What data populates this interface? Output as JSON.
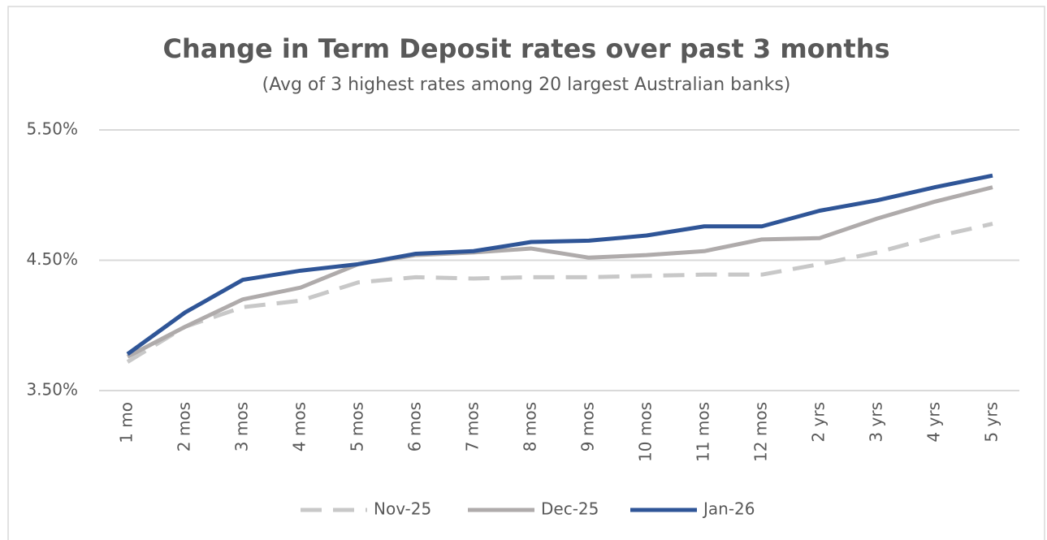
{
  "chart_data": {
    "type": "line",
    "title": "Change in Term Deposit rates over past 3 months",
    "subtitle": "(Avg of 3 highest rates among 20 largest Australian banks)",
    "categories": [
      "1 mo",
      "2 mos",
      "3 mos",
      "4 mos",
      "5 mos",
      "6 mos",
      "7 mos",
      "8 mos",
      "9 mos",
      "10 mos",
      "11 mos",
      "12 mos",
      "2 yrs",
      "3 yrs",
      "4 yrs",
      "5 yrs"
    ],
    "series": [
      {
        "name": "Nov-25",
        "color": "#c8c8c8",
        "style": "dashed",
        "values": [
          3.72,
          3.99,
          4.14,
          4.19,
          4.33,
          4.37,
          4.36,
          4.37,
          4.37,
          4.38,
          4.39,
          4.39,
          4.47,
          4.56,
          4.68,
          4.78
        ]
      },
      {
        "name": "Dec-25",
        "color": "#afabab",
        "style": "solid",
        "values": [
          3.76,
          3.99,
          4.2,
          4.29,
          4.47,
          4.54,
          4.56,
          4.59,
          4.52,
          4.54,
          4.57,
          4.66,
          4.67,
          4.82,
          4.95,
          5.06
        ]
      },
      {
        "name": "Jan-26",
        "color": "#2f5597",
        "style": "solid",
        "values": [
          3.78,
          4.1,
          4.35,
          4.42,
          4.47,
          4.55,
          4.57,
          4.64,
          4.65,
          4.69,
          4.76,
          4.76,
          4.88,
          4.96,
          5.06,
          5.15
        ]
      }
    ],
    "ylim": [
      3.5,
      5.5
    ],
    "yticks": [
      {
        "value": 3.5,
        "label": "3.50%"
      },
      {
        "value": 4.5,
        "label": "4.50%"
      },
      {
        "value": 5.5,
        "label": "5.50%"
      }
    ],
    "grid": true,
    "legend": "bottom"
  }
}
